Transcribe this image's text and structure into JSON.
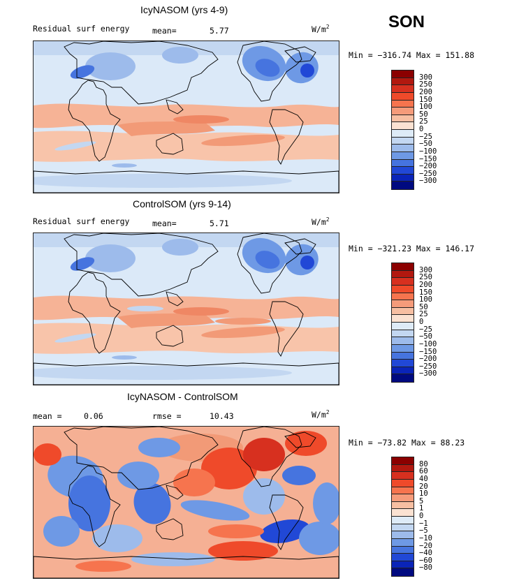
{
  "season": "SON",
  "units": {
    "base": "W/m",
    "exp": "2"
  },
  "panels": [
    {
      "title": "IcyNASOM (yrs 4-9)",
      "subtitle": "Residual surf energy",
      "stat1": "mean=",
      "stat1_value": "5.77",
      "minmax": "Min = −316.74 Max = 151.88",
      "colorbar": [
        "300",
        "250",
        "200",
        "150",
        "100",
        "50",
        "25",
        "0",
        "−25",
        "−50",
        "−100",
        "−150",
        "−200",
        "−250",
        "−300"
      ],
      "colors": [
        "#8b0000",
        "#b2180f",
        "#d7301f",
        "#ef4a2a",
        "#f6744e",
        "#f59b7a",
        "#f7bfa2",
        "#fbe2d2",
        "#deebf7",
        "#c3d7f1",
        "#9dbbeb",
        "#6e99e5",
        "#4674df",
        "#2148d6",
        "#0a24b8",
        "#000a80"
      ]
    },
    {
      "title": "ControlSOM (yrs 9-14)",
      "subtitle": "Residual surf energy",
      "stat1": "mean=",
      "stat1_value": "5.71",
      "minmax": "Min = −321.23 Max = 146.17",
      "colorbar": [
        "300",
        "250",
        "200",
        "150",
        "100",
        "50",
        "25",
        "0",
        "−25",
        "−50",
        "−100",
        "−150",
        "−200",
        "−250",
        "−300"
      ],
      "colors": [
        "#8b0000",
        "#b2180f",
        "#d7301f",
        "#ef4a2a",
        "#f6744e",
        "#f59b7a",
        "#f7bfa2",
        "#fbe2d2",
        "#deebf7",
        "#c3d7f1",
        "#9dbbeb",
        "#6e99e5",
        "#4674df",
        "#2148d6",
        "#0a24b8",
        "#000a80"
      ]
    },
    {
      "title": "IcyNASOM - ControlSOM",
      "stat1": "mean =",
      "stat1_value": "0.06",
      "stat2": "rmse =",
      "stat2_value": "10.43",
      "minmax": "Min = −73.82 Max =  88.23",
      "colorbar": [
        "80",
        "60",
        "40",
        "20",
        "10",
        "5",
        "1",
        "0",
        "−1",
        "−5",
        "−10",
        "−20",
        "−40",
        "−60",
        "−80"
      ],
      "colors": [
        "#8b0000",
        "#b2180f",
        "#d7301f",
        "#ef4a2a",
        "#f6744e",
        "#f59b7a",
        "#f7bfa2",
        "#fbe2d2",
        "#deebf7",
        "#c3d7f1",
        "#9dbbeb",
        "#6e99e5",
        "#4674df",
        "#2148d6",
        "#0a24b8",
        "#000a80"
      ]
    }
  ]
}
